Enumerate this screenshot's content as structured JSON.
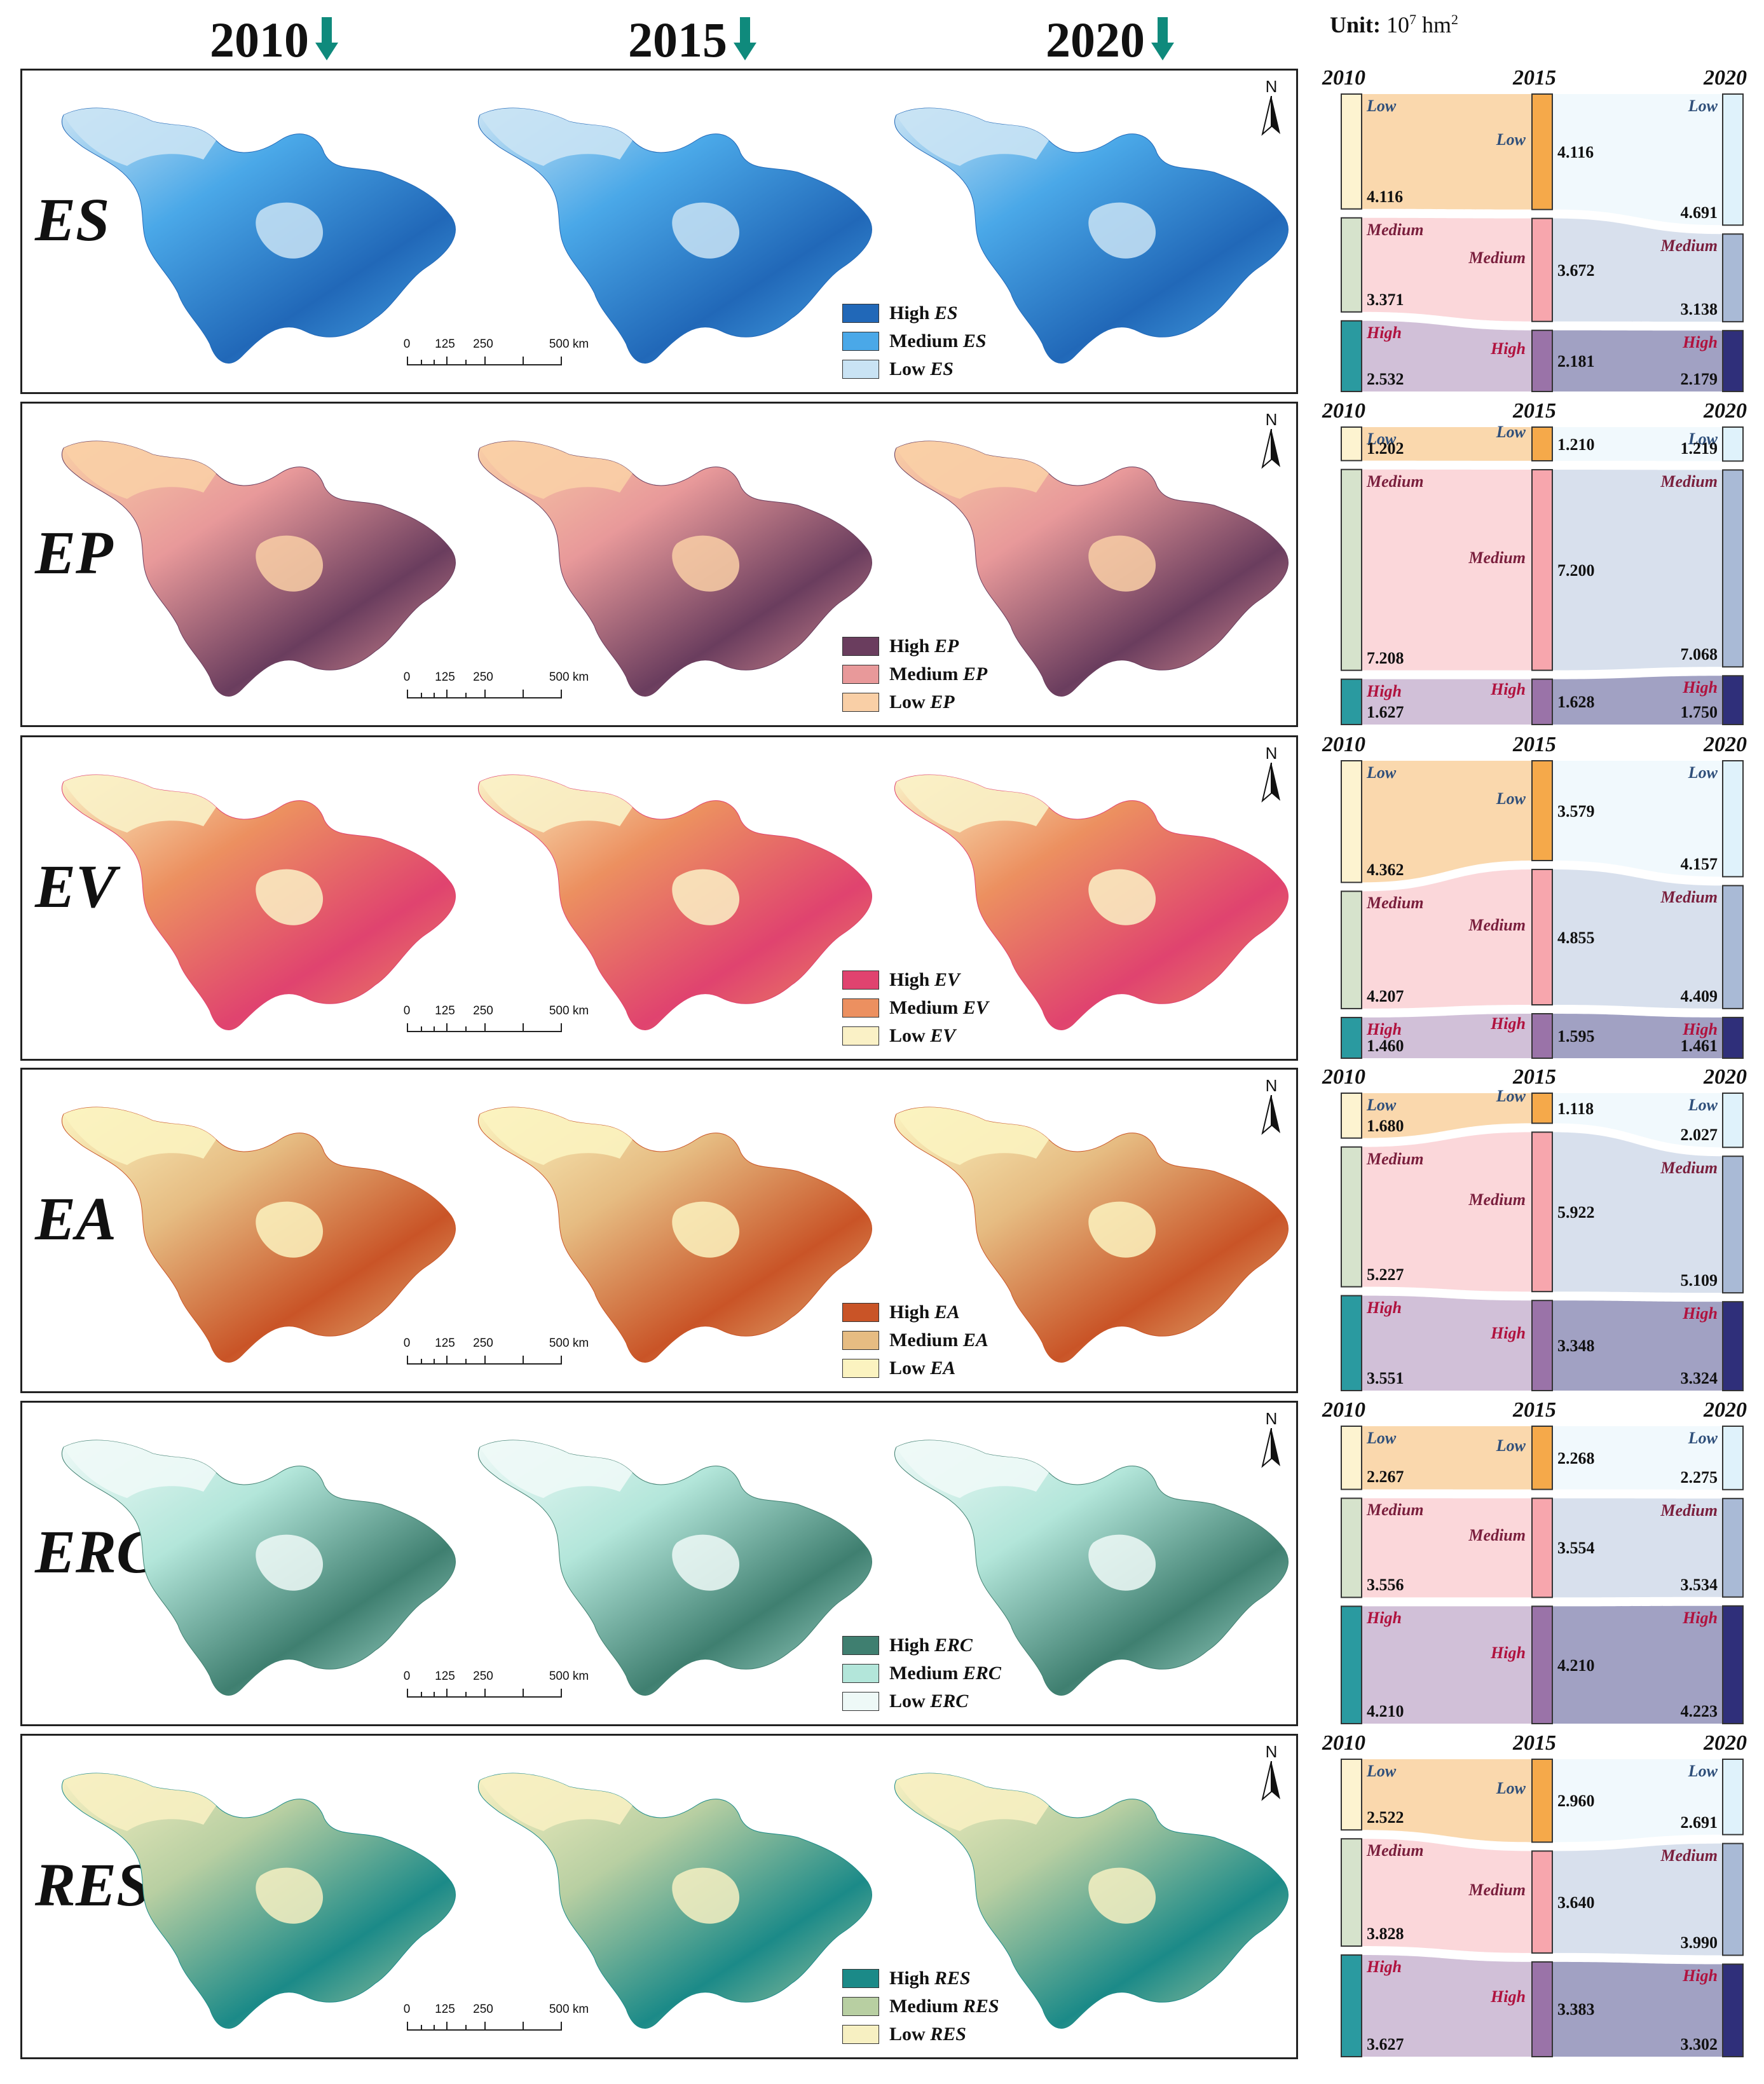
{
  "years": [
    "2010",
    "2015",
    "2020"
  ],
  "unit_label": "Unit:",
  "unit_value": "10",
  "unit_exp": "7",
  "unit_suffix": " hm",
  "unit_exp2": "2",
  "scale_ticks": [
    "0",
    "125",
    "250",
    "500 km"
  ],
  "north_label": "N",
  "colors": {
    "arrow": "#0f8a7c",
    "year_nodes": [
      "#fdf3d0",
      "#f5a94a",
      "#dff2fb"
    ],
    "ES": [
      "#2168b8",
      "#4aa8e8",
      "#c9e3f4"
    ],
    "EP": [
      "#6a3d5e",
      "#e8999a",
      "#f9cfa6"
    ],
    "EV": [
      "#e0436f",
      "#ec9060",
      "#faf1c6"
    ],
    "EA": [
      "#c95427",
      "#e6bc82",
      "#fbf3c0"
    ],
    "ERC": [
      "#3f7f70",
      "#b3e6da",
      "#eef9f7"
    ],
    "RES": [
      "#1b8a88",
      "#b8cfa2",
      "#f7f0c2"
    ]
  },
  "rows": [
    {
      "key": "ES",
      "legend": [
        {
          "level": "High",
          "abbr": "ES"
        },
        {
          "level": "Medium",
          "abbr": "ES"
        },
        {
          "level": "Low",
          "abbr": "ES"
        }
      ],
      "sankey": {
        "low": [
          "4.116",
          "4.116",
          "4.691"
        ],
        "medium": [
          "3.371",
          "3.672",
          "3.138"
        ],
        "high": [
          "2.532",
          "2.181",
          "2.179"
        ]
      }
    },
    {
      "key": "EP",
      "legend": [
        {
          "level": "High",
          "abbr": "EP"
        },
        {
          "level": "Medium",
          "abbr": "EP"
        },
        {
          "level": "Low",
          "abbr": "EP"
        }
      ],
      "sankey": {
        "low": [
          "1.202",
          "1.210",
          "1.219"
        ],
        "medium": [
          "7.208",
          "7.200",
          "7.068"
        ],
        "high": [
          "1.627",
          "1.628",
          "1.750"
        ]
      }
    },
    {
      "key": "EV",
      "legend": [
        {
          "level": "High",
          "abbr": "EV"
        },
        {
          "level": "Medium",
          "abbr": "EV"
        },
        {
          "level": "Low",
          "abbr": "EV"
        }
      ],
      "sankey": {
        "low": [
          "4.362",
          "3.579",
          "4.157"
        ],
        "medium": [
          "4.207",
          "4.855",
          "4.409"
        ],
        "high": [
          "1.460",
          "1.595",
          "1.461"
        ]
      }
    },
    {
      "key": "EA",
      "legend": [
        {
          "level": "High",
          "abbr": "EA"
        },
        {
          "level": "Medium",
          "abbr": "EA"
        },
        {
          "level": "Low",
          "abbr": "EA"
        }
      ],
      "sankey": {
        "low": [
          "1.680",
          "1.118",
          "2.027"
        ],
        "medium": [
          "5.227",
          "5.922",
          "5.109"
        ],
        "high": [
          "3.551",
          "3.348",
          "3.324"
        ]
      }
    },
    {
      "key": "ERC",
      "legend": [
        {
          "level": "High",
          "abbr": "ERC"
        },
        {
          "level": "Medium",
          "abbr": "ERC"
        },
        {
          "level": "Low",
          "abbr": "ERC"
        }
      ],
      "sankey": {
        "low": [
          "2.267",
          "2.268",
          "2.275"
        ],
        "medium": [
          "3.556",
          "3.554",
          "3.534"
        ],
        "high": [
          "4.210",
          "4.210",
          "4.223"
        ]
      }
    },
    {
      "key": "RES",
      "legend": [
        {
          "level": "High",
          "abbr": "RES"
        },
        {
          "level": "Medium",
          "abbr": "RES"
        },
        {
          "level": "Low",
          "abbr": "RES"
        }
      ],
      "sankey": {
        "low": [
          "2.522",
          "2.960",
          "2.691"
        ],
        "medium": [
          "3.828",
          "3.640",
          "3.990"
        ],
        "high": [
          "3.627",
          "3.383",
          "3.302"
        ]
      }
    }
  ],
  "sankey_level_labels": {
    "low": "Low",
    "medium": "Medium",
    "high": "High"
  }
}
